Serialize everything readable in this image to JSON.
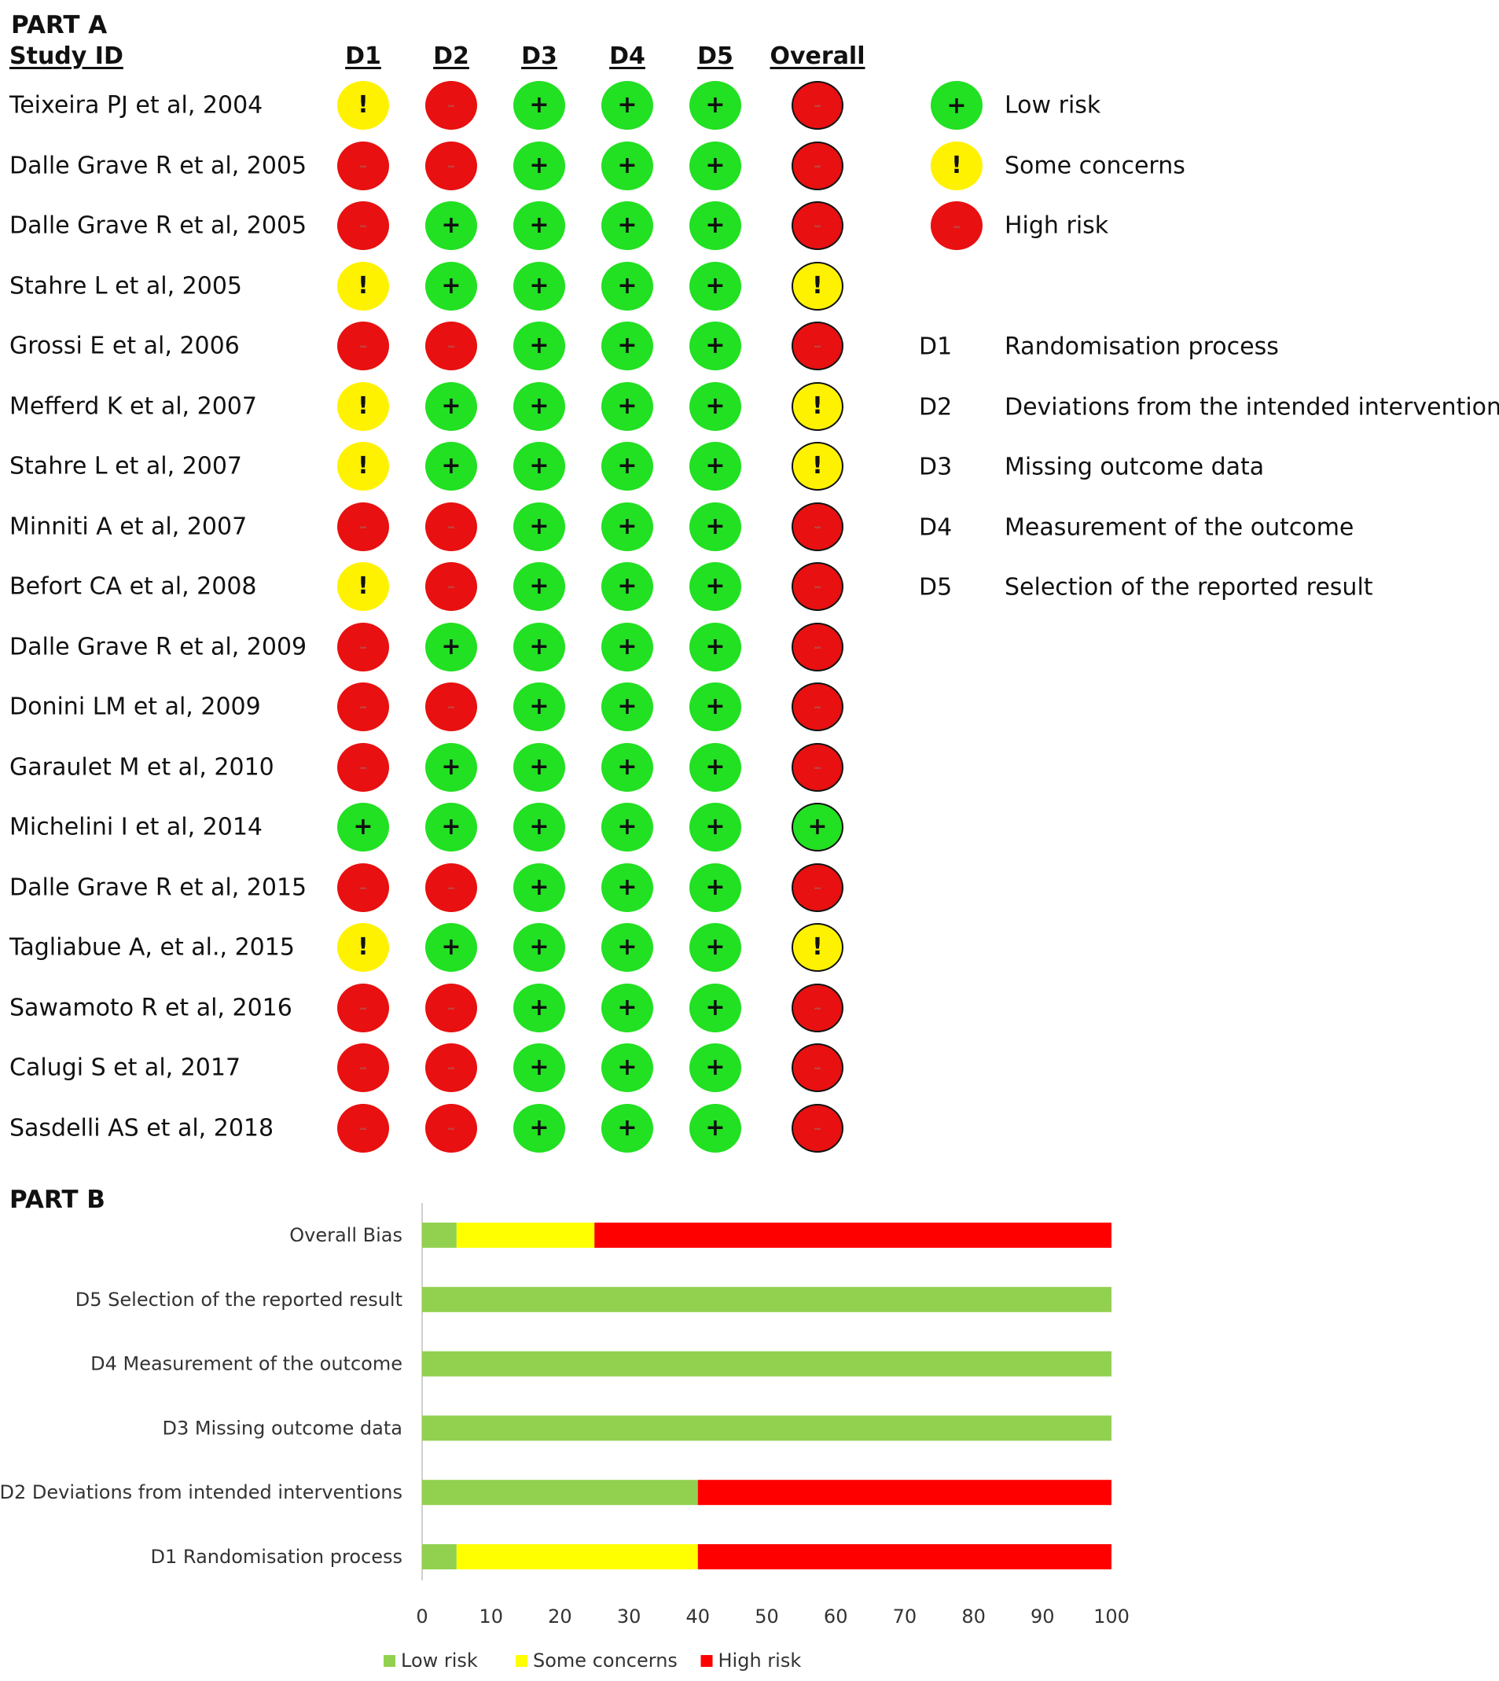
{
  "part_a": {
    "heading": "PART A",
    "study_id_header": "Study ID",
    "columns": [
      "D1",
      "D2",
      "D3",
      "D4",
      "D5",
      "Overall"
    ],
    "symbols": {
      "low": "+",
      "some": "!",
      "high": "-"
    },
    "studies": [
      {
        "name": "Teixeira PJ et al, 2004",
        "ratings": [
          "some",
          "high",
          "low",
          "low",
          "low",
          "high"
        ]
      },
      {
        "name": "Dalle Grave R et al, 2005",
        "ratings": [
          "high",
          "high",
          "low",
          "low",
          "low",
          "high"
        ]
      },
      {
        "name": "Dalle Grave R et al, 2005",
        "ratings": [
          "high",
          "low",
          "low",
          "low",
          "low",
          "high"
        ]
      },
      {
        "name": "Stahre L et al, 2005",
        "ratings": [
          "some",
          "low",
          "low",
          "low",
          "low",
          "some"
        ]
      },
      {
        "name": "Grossi E et al, 2006",
        "ratings": [
          "high",
          "high",
          "low",
          "low",
          "low",
          "high"
        ]
      },
      {
        "name": "Mefferd K et al, 2007",
        "ratings": [
          "some",
          "low",
          "low",
          "low",
          "low",
          "some"
        ]
      },
      {
        "name": "Stahre L et al, 2007",
        "ratings": [
          "some",
          "low",
          "low",
          "low",
          "low",
          "some"
        ]
      },
      {
        "name": "Minniti A et al, 2007",
        "ratings": [
          "high",
          "high",
          "low",
          "low",
          "low",
          "high"
        ]
      },
      {
        "name": "Befort CA et al, 2008",
        "ratings": [
          "some",
          "high",
          "low",
          "low",
          "low",
          "high"
        ]
      },
      {
        "name": "Dalle Grave R et al, 2009",
        "ratings": [
          "high",
          "low",
          "low",
          "low",
          "low",
          "high"
        ]
      },
      {
        "name": "Donini LM et al, 2009",
        "ratings": [
          "high",
          "high",
          "low",
          "low",
          "low",
          "high"
        ]
      },
      {
        "name": "Garaulet M et al, 2010",
        "ratings": [
          "high",
          "low",
          "low",
          "low",
          "low",
          "high"
        ]
      },
      {
        "name": "Michelini I et al, 2014",
        "ratings": [
          "low",
          "low",
          "low",
          "low",
          "low",
          "low"
        ]
      },
      {
        "name": "Dalle Grave R et al, 2015",
        "ratings": [
          "high",
          "high",
          "low",
          "low",
          "low",
          "high"
        ]
      },
      {
        "name": "Tagliabue A, et al., 2015",
        "ratings": [
          "some",
          "low",
          "low",
          "low",
          "low",
          "some"
        ]
      },
      {
        "name": "Sawamoto R et al, 2016",
        "ratings": [
          "high",
          "high",
          "low",
          "low",
          "low",
          "high"
        ]
      },
      {
        "name": "Calugi S et al, 2017",
        "ratings": [
          "high",
          "high",
          "low",
          "low",
          "low",
          "high"
        ]
      },
      {
        "name": "Sasdelli AS et al, 2018",
        "ratings": [
          "high",
          "high",
          "low",
          "low",
          "low",
          "high"
        ]
      }
    ],
    "legend": [
      {
        "key": "low",
        "label": "Low risk"
      },
      {
        "key": "some",
        "label": "Some concerns"
      },
      {
        "key": "high",
        "label": "High risk"
      }
    ],
    "domains": [
      {
        "code": "D1",
        "description": "Randomisation process"
      },
      {
        "code": "D2",
        "description": "Deviations from the intended interventions"
      },
      {
        "code": "D3",
        "description": "Missing outcome data"
      },
      {
        "code": "D4",
        "description": "Measurement of the outcome"
      },
      {
        "code": "D5",
        "description": "Selection of the reported result"
      }
    ],
    "colors": {
      "low": "#22e022",
      "some": "#fff200",
      "high": "#e81010"
    }
  },
  "part_b": {
    "heading": "PART B"
  },
  "chart_data": {
    "type": "bar",
    "orientation": "horizontal",
    "stacked": true,
    "categories": [
      "Overall Bias",
      "D5 Selection of the reported result",
      "D4 Measurement of the outcome",
      "D3 Missing outcome data",
      "D2 Deviations from intended interventions",
      "D1 Randomisation process"
    ],
    "series": [
      {
        "name": "Low risk",
        "color": "#92d050",
        "values": [
          5,
          100,
          100,
          100,
          40,
          5
        ]
      },
      {
        "name": "Some concerns",
        "color": "#ffff00",
        "values": [
          20,
          0,
          0,
          0,
          0,
          35
        ]
      },
      {
        "name": "High risk",
        "color": "#ff0000",
        "values": [
          75,
          0,
          0,
          0,
          60,
          60
        ]
      }
    ],
    "xlim": [
      0,
      100
    ],
    "xticks": [
      0,
      10,
      20,
      30,
      40,
      50,
      60,
      70,
      80,
      90,
      100
    ],
    "grid": false,
    "legend_position": "bottom"
  }
}
